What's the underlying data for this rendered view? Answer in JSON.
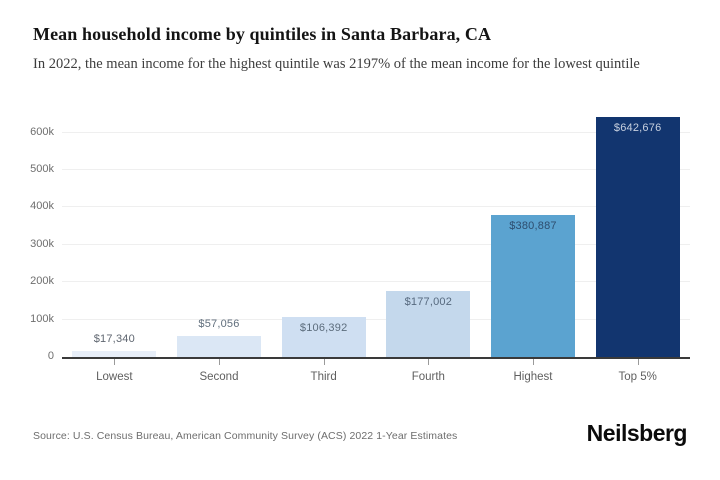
{
  "header": {
    "title": "Mean household income by quintiles in Santa Barbara, CA",
    "subtitle": "In 2022, the mean income for the highest quintile was 2197% of the mean income for the lowest quintile"
  },
  "chart_data": {
    "type": "bar",
    "title": "Mean household income by quintiles in Santa Barbara, CA",
    "categories": [
      "Lowest",
      "Second",
      "Third",
      "Fourth",
      "Highest",
      "Top 5%"
    ],
    "values": [
      17340,
      57056,
      106392,
      177002,
      380887,
      642676
    ],
    "value_labels": [
      "$17,340",
      "$57,056",
      "$106,392",
      "$177,002",
      "$380,887",
      "$642,676"
    ],
    "bar_colors": [
      "#e7eef8",
      "#dbe7f5",
      "#cfdff2",
      "#c4d8ec",
      "#5ba3d0",
      "#12356f"
    ],
    "value_label_colors": [
      "#5f6670",
      "#606e7c",
      "#5c6c7c",
      "#56697e",
      "#2e4d6e",
      "#c7d0df"
    ],
    "xlabel": "",
    "ylabel": "",
    "ytick_labels": [
      "0",
      "100k",
      "200k",
      "300k",
      "400k",
      "500k",
      "600k"
    ],
    "ytick_values": [
      0,
      100000,
      200000,
      300000,
      400000,
      500000,
      600000
    ],
    "ylim": [
      0,
      650000
    ],
    "grid": "horizontal",
    "legend": "none"
  },
  "footer": {
    "source": "Source: U.S. Census Bureau, American Community Survey (ACS) 2022 1-Year Estimates",
    "brand": "Neilsberg"
  }
}
